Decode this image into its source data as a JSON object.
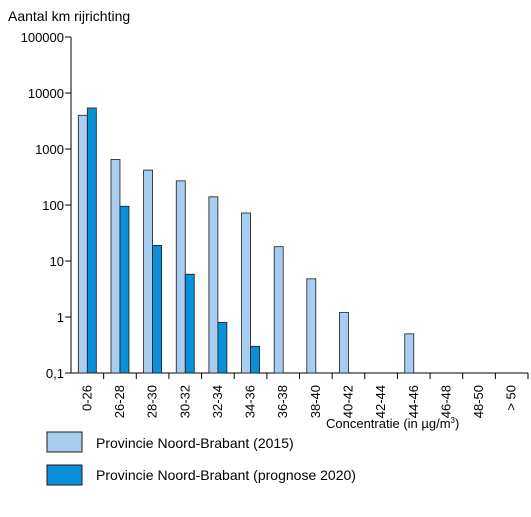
{
  "chart_data": {
    "type": "bar",
    "ylabel": "Aantal km rijrichting",
    "xlabel_main": "Concentratie (in µg/m",
    "xlabel_sup": "3",
    "xlabel_close": ")",
    "yscale": "log",
    "ylim": [
      0.1,
      100000
    ],
    "yticks": [
      {
        "v": 100000,
        "label": "100000"
      },
      {
        "v": 10000,
        "label": "10000"
      },
      {
        "v": 1000,
        "label": "1000"
      },
      {
        "v": 100,
        "label": "100"
      },
      {
        "v": 10,
        "label": "10"
      },
      {
        "v": 1,
        "label": "1"
      },
      {
        "v": 0.1,
        "label": "0,1"
      }
    ],
    "categories": [
      "0-26",
      "26-28",
      "28-30",
      "30-32",
      "32-34",
      "34-36",
      "36-38",
      "38-40",
      "40-42",
      "42-44",
      "44-46",
      "46-48",
      "48-50",
      "> 50"
    ],
    "series": [
      {
        "name": "Provincie Noord-Brabant (2015)",
        "color": "#a9cdf0",
        "values": [
          4000,
          650,
          420,
          270,
          140,
          72,
          18,
          4.8,
          1.2,
          null,
          0.5,
          null,
          null,
          null
        ]
      },
      {
        "name": "Provincie Noord-Brabant (prognose 2020)",
        "color": "#0a90d8",
        "values": [
          5400,
          95,
          19,
          5.8,
          0.8,
          0.3,
          null,
          null,
          null,
          null,
          null,
          null,
          null,
          null
        ]
      }
    ],
    "legend_position": "bottom-left",
    "grid": false
  }
}
